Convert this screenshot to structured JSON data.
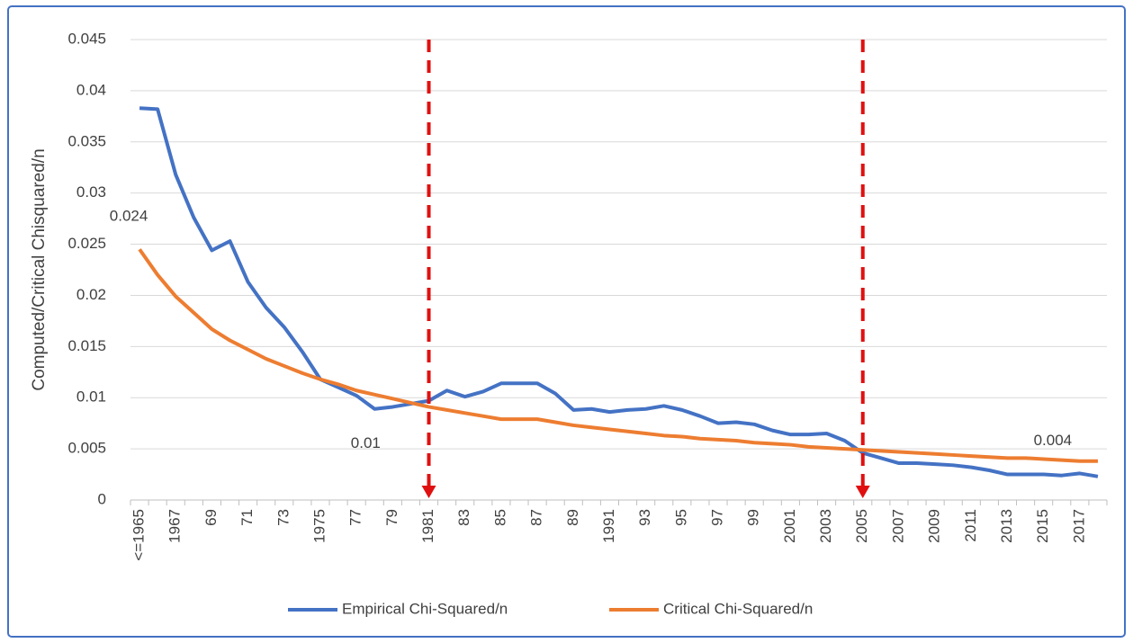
{
  "chart_data": {
    "type": "line",
    "y_label": "Computed/Critical Chisquared/n",
    "categories": [
      "<=1965",
      null,
      "1967",
      null,
      "69",
      null,
      "71",
      null,
      "73",
      null,
      "1975",
      null,
      "77",
      null,
      "79",
      null,
      "1981",
      null,
      "83",
      null,
      "85",
      null,
      "87",
      null,
      "89",
      null,
      "1991",
      null,
      "93",
      null,
      "95",
      null,
      "97",
      null,
      "99",
      null,
      "2001",
      null,
      "2003",
      null,
      "2005",
      null,
      "2007",
      null,
      "2009",
      null,
      "2011",
      null,
      "2013",
      null,
      "2015",
      null,
      "2017",
      null
    ],
    "series": [
      {
        "name": "Empirical Chi-Squared/n",
        "color": "#4472c4",
        "values": [
          0.0383,
          0.0382,
          0.0318,
          0.0276,
          0.0244,
          0.0253,
          0.0213,
          0.0188,
          0.0169,
          0.0145,
          0.0118,
          0.011,
          0.0102,
          0.0089,
          0.0091,
          0.0094,
          0.0097,
          0.0107,
          0.0101,
          0.0106,
          0.0114,
          0.0114,
          0.0114,
          0.0104,
          0.0088,
          0.0089,
          0.0086,
          0.0088,
          0.0089,
          0.0092,
          0.0088,
          0.0082,
          0.0075,
          0.0076,
          0.0074,
          0.0068,
          0.0064,
          0.0064,
          0.0065,
          0.0058,
          0.0046,
          0.0041,
          0.0036,
          0.0036,
          0.0035,
          0.0034,
          0.0032,
          0.0029,
          0.0025,
          0.0025,
          0.0025,
          0.0024,
          0.0026,
          0.0023
        ]
      },
      {
        "name": "Critical Chi-Squared/n",
        "color": "#ed7d31",
        "values": [
          0.0245,
          0.022,
          0.0199,
          0.0183,
          0.0167,
          0.0156,
          0.0147,
          0.0138,
          0.0131,
          0.0124,
          0.0118,
          0.0113,
          0.0107,
          0.0103,
          0.0099,
          0.0095,
          0.0091,
          0.0088,
          0.0085,
          0.0082,
          0.0079,
          0.0079,
          0.0079,
          0.0076,
          0.0073,
          0.0071,
          0.0069,
          0.0067,
          0.0065,
          0.0063,
          0.0062,
          0.006,
          0.0059,
          0.0058,
          0.0056,
          0.0055,
          0.0054,
          0.0052,
          0.0051,
          0.005,
          0.0049,
          0.0048,
          0.0047,
          0.0046,
          0.0045,
          0.0044,
          0.0043,
          0.0042,
          0.0041,
          0.0041,
          0.004,
          0.0039,
          0.0038,
          0.0038
        ]
      }
    ],
    "ylim": [
      0,
      0.045
    ],
    "yticks": [
      0,
      0.005,
      0.01,
      0.015,
      0.02,
      0.025,
      0.03,
      0.035,
      0.04,
      0.045
    ],
    "grid": true,
    "legend": "bottom",
    "reference_lines": [
      "1981",
      "2005"
    ],
    "reference_color": "#e01010",
    "annotations": [
      {
        "text": "0.024",
        "category": "<=1965"
      },
      {
        "text": "0.01",
        "category": "79"
      },
      {
        "text": "0.004",
        "category": "2017"
      }
    ]
  }
}
